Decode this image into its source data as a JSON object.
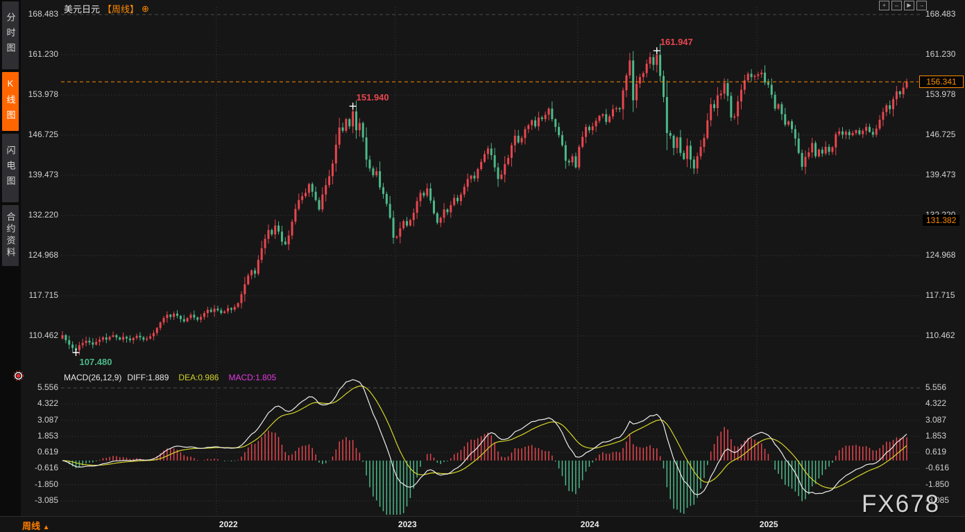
{
  "window": {
    "symbol": "美元日元",
    "period_tag": "【周线】",
    "add_icon": "⊕"
  },
  "sidebar": {
    "tabs": [
      {
        "id": "tab-time-share-chart",
        "label": "分时图",
        "active": false
      },
      {
        "id": "tab-kline-chart",
        "label": "K线图",
        "active": true
      },
      {
        "id": "tab-flash-chart",
        "label": "闪电图",
        "active": false
      },
      {
        "id": "tab-contract-info",
        "label": "合约资料",
        "active": false
      }
    ]
  },
  "toolbar": {
    "icons": [
      {
        "name": "crosshair-tool-icon",
        "glyph": "+"
      },
      {
        "name": "fit-horizontal-icon",
        "glyph": "↔"
      },
      {
        "name": "go-to-latest-icon",
        "glyph": "▶"
      },
      {
        "name": "detach-window-icon",
        "glyph": "→"
      }
    ]
  },
  "macd_header": {
    "params": "MACD(26,12,9)",
    "diff": "DIFF:1.889",
    "dea": "DEA:0.986",
    "macd": "MACD:1.805"
  },
  "current_price_tag": {
    "label": "156.341"
  },
  "level_tag": {
    "label": "131.382"
  },
  "bottom_bar": {
    "period": "周线",
    "arrow": "▲"
  },
  "watermark": "FX678",
  "colors": {
    "background": "#161616",
    "up": "#e8464f",
    "down": "#4cb98a",
    "accent_orange": "#ff8a00",
    "diff_line": "#eeeeee",
    "dea_line": "#d6d62a",
    "macd_value_text": "#e23ae2",
    "grid": "#3d3d3d",
    "grid_major": "#4c4c4c",
    "axis_text": "#d2d2d2",
    "marker": "#ffffff"
  },
  "chart_data": {
    "type": "candlestick_with_macd",
    "symbol": "美元日元 (USD/JPY)",
    "interval": "周线 (weekly)",
    "price_ticks": [
      168.483,
      161.23,
      153.978,
      146.725,
      139.473,
      132.22,
      124.968,
      117.715,
      110.462
    ],
    "macd_ticks": [
      5.556,
      4.322,
      3.087,
      1.853,
      0.619,
      -0.616,
      -1.85,
      -3.085
    ],
    "year_ticks": [
      {
        "label": "2022",
        "week": 46
      },
      {
        "label": "2023",
        "week": 99
      },
      {
        "label": "2024",
        "week": 153
      },
      {
        "label": "2025",
        "week": 206
      }
    ],
    "open_rule": "previous_close",
    "first_open": 110.0,
    "closes": [
      110.6,
      109.7,
      108.9,
      108.3,
      107.9,
      108.8,
      109.2,
      109.6,
      109.3,
      108.9,
      109.4,
      109.8,
      110.2,
      109.8,
      110.3,
      110.6,
      110.2,
      109.8,
      110.3,
      110.0,
      109.7,
      110.1,
      110.5,
      110.2,
      109.8,
      110.0,
      110.4,
      111.0,
      111.9,
      112.9,
      113.7,
      114.3,
      113.9,
      114.5,
      114.1,
      113.5,
      113.1,
      113.7,
      114.3,
      113.8,
      113.4,
      113.9,
      114.6,
      115.2,
      114.8,
      115.4,
      115.1,
      114.6,
      114.9,
      115.5,
      115.2,
      115.7,
      116.4,
      118.0,
      119.8,
      121.4,
      122.3,
      121.7,
      124.2,
      126.3,
      128.0,
      129.6,
      128.8,
      130.4,
      129.3,
      127.5,
      127.0,
      128.6,
      131.1,
      133.4,
      135.0,
      135.7,
      136.3,
      137.9,
      136.5,
      135.0,
      133.3,
      136.0,
      137.7,
      139.3,
      141.6,
      145.0,
      148.1,
      147.5,
      149.6,
      148.3,
      151.0,
      147.6,
      148.9,
      146.3,
      142.3,
      140.7,
      139.5,
      140.2,
      137.3,
      136.1,
      134.3,
      131.8,
      128.2,
      128.4,
      129.9,
      131.2,
      130.4,
      131.4,
      132.7,
      134.8,
      136.3,
      135.8,
      137.1,
      134.9,
      132.6,
      130.9,
      131.8,
      133.3,
      132.8,
      134.1,
      135.4,
      134.8,
      136.0,
      137.4,
      138.8,
      139.4,
      138.9,
      140.6,
      141.9,
      143.3,
      144.3,
      143.1,
      140.9,
      138.8,
      139.6,
      141.5,
      142.6,
      144.9,
      146.6,
      145.4,
      146.2,
      147.8,
      148.5,
      149.4,
      148.3,
      149.9,
      149.6,
      150.4,
      151.5,
      149.6,
      148.2,
      146.7,
      144.9,
      142.1,
      141.8,
      142.9,
      140.9,
      144.6,
      146.4,
      148.2,
      147.6,
      148.3,
      149.3,
      150.2,
      150.5,
      149.1,
      150.1,
      151.4,
      151.6,
      151.4,
      154.8,
      157.5,
      160.2,
      153.0,
      156.0,
      157.2,
      157.9,
      159.6,
      160.8,
      159.4,
      161.2,
      157.4,
      153.6,
      147.1,
      146.6,
      144.4,
      146.3,
      143.5,
      142.4,
      144.8,
      142.3,
      140.7,
      142.9,
      144.6,
      146.2,
      149.4,
      152.3,
      151.6,
      153.9,
      154.2,
      156.1,
      153.8,
      149.9,
      150.1,
      152.8,
      154.9,
      156.6,
      157.8,
      157.2,
      157.4,
      157.7,
      158.0,
      156.2,
      155.8,
      154.0,
      151.5,
      152.3,
      150.5,
      148.6,
      149.2,
      147.8,
      146.1,
      143.5,
      141.0,
      142.8,
      143.6,
      145.3,
      142.9,
      144.1,
      143.4,
      144.6,
      143.7,
      144.5,
      146.9,
      147.4,
      146.8,
      147.3,
      146.7,
      147.1,
      147.6,
      146.9,
      147.5,
      148.2,
      147.3,
      146.8,
      147.9,
      149.5,
      150.9,
      152.1,
      151.4,
      153.2,
      154.6,
      154.1,
      155.3,
      156.34
    ],
    "extreme_overrides": {
      "4": {
        "low": 107.48
      },
      "86": {
        "high": 151.94
      },
      "176": {
        "high": 161.947
      },
      "250": {
        "high": 156.9
      }
    },
    "annotations": [
      {
        "week": 4,
        "price": 107.48,
        "text": "107.480",
        "side": "low",
        "color": "#4cb98a"
      },
      {
        "week": 86,
        "price": 151.94,
        "text": "151.940",
        "side": "high",
        "color": "#e8464f"
      },
      {
        "week": 176,
        "price": 161.947,
        "text": "161.947",
        "side": "high",
        "color": "#e8464f"
      }
    ],
    "current_price": 156.341,
    "level_line_price": 131.382,
    "macd_params": {
      "slow": 26,
      "fast": 12,
      "signal": 9
    },
    "displayed_macd": {
      "diff": 1.889,
      "dea": 0.986,
      "macd": 1.805
    }
  }
}
